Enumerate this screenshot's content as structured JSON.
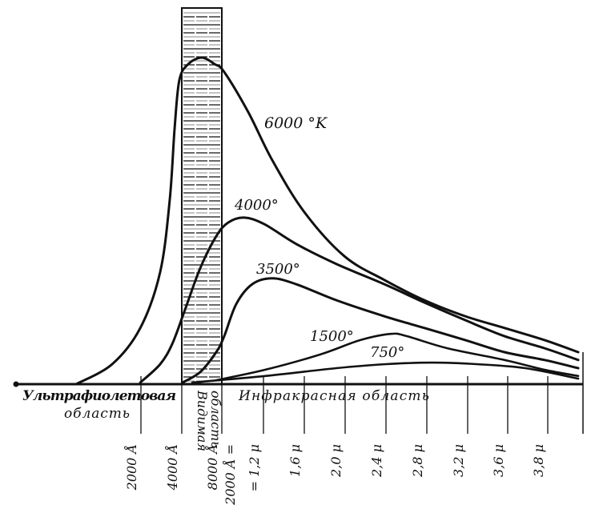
{
  "chart_data": {
    "type": "line",
    "title": "",
    "xlabel": "",
    "ylabel": "",
    "grid": false,
    "x_units": "μ",
    "x_ticks": [
      {
        "value": 0.2,
        "label": "2000 Å"
      },
      {
        "value": 0.4,
        "label": "4000 Å"
      },
      {
        "value": 0.8,
        "label": "8000 Å"
      },
      {
        "value": 1.2,
        "label": "12000 Å =",
        "label2": "= 1,2 μ"
      },
      {
        "value": 1.6,
        "label": "1,6 μ"
      },
      {
        "value": 2.0,
        "label": "2,0 μ"
      },
      {
        "value": 2.4,
        "label": "2,4 μ"
      },
      {
        "value": 2.8,
        "label": "2,8 μ"
      },
      {
        "value": 3.2,
        "label": "3,2 μ"
      },
      {
        "value": 3.6,
        "label": "3,6 μ"
      },
      {
        "value": 3.8,
        "label": "3,8 μ"
      }
    ],
    "regions": {
      "ultraviolet": [
        "Ультрафиолетовая",
        "область"
      ],
      "visible": [
        "Видимая",
        "область"
      ],
      "infrared": "Инфракрасная область",
      "visible_range": [
        0.4,
        0.8
      ]
    },
    "series": [
      {
        "name": "6000 °K",
        "x": [
          0,
          0.111,
          0.198,
          0.294,
          0.341,
          0.365,
          0.388,
          0.464,
          0.6,
          0.728,
          0.823,
          1.054,
          1.286,
          1.6,
          1.992,
          2.384,
          2.776,
          3.176,
          3.568,
          3.784,
          3.973
        ],
        "y": [
          0,
          6.1,
          17.2,
          34.3,
          56.4,
          78.4,
          93.1,
          98.0,
          100,
          98.0,
          95.6,
          83.3,
          68.6,
          52.7,
          39.2,
          31.9,
          25.7,
          20.8,
          17.2,
          13.5,
          9.8
        ]
      },
      {
        "name": "4000°",
        "x": [
          0.198,
          0.294,
          0.353,
          0.424,
          0.584,
          0.744,
          0.862,
          1.015,
          1.208,
          1.522,
          1.914,
          2.384,
          2.776,
          3.176,
          3.568,
          3.784,
          3.973
        ],
        "y": [
          0.5,
          6.1,
          12.3,
          22.1,
          35.5,
          45.3,
          49.5,
          51.0,
          49.0,
          42.9,
          36.8,
          30.6,
          25.0,
          19.6,
          14.7,
          11.0,
          7.4
        ]
      },
      {
        "name": "3500°",
        "x": [
          0.408,
          0.584,
          0.744,
          0.823,
          0.938,
          1.092,
          1.286,
          1.522,
          1.914,
          2.384,
          2.776,
          3.176,
          3.568,
          3.784,
          3.973
        ],
        "y": [
          0.5,
          3.7,
          9.8,
          14.7,
          24.5,
          30.6,
          32.4,
          30.6,
          25.7,
          20.8,
          17.2,
          13.5,
          9.8,
          7.4,
          4.9
        ]
      },
      {
        "name": "1500°",
        "x": [
          0.744,
          1.216,
          1.757,
          2.149,
          2.447,
          2.604,
          3.0,
          3.568,
          3.784,
          3.973
        ],
        "y": [
          1.2,
          4.4,
          9.1,
          13.5,
          15.4,
          14.7,
          11.0,
          7.4,
          4.4,
          2.5
        ]
      },
      {
        "name": "750°",
        "x": [
          0.504,
          1.216,
          1.914,
          2.384,
          2.855,
          3.304,
          3.688,
          3.973
        ],
        "y": [
          0.5,
          2.5,
          4.9,
          6.1,
          6.6,
          6.1,
          4.9,
          1.7
        ]
      }
    ],
    "ylim": [
      0,
      100
    ],
    "xlim": [
      0,
      4.0
    ],
    "colors": {
      "ink": "#111111",
      "background": "#ffffff"
    }
  }
}
